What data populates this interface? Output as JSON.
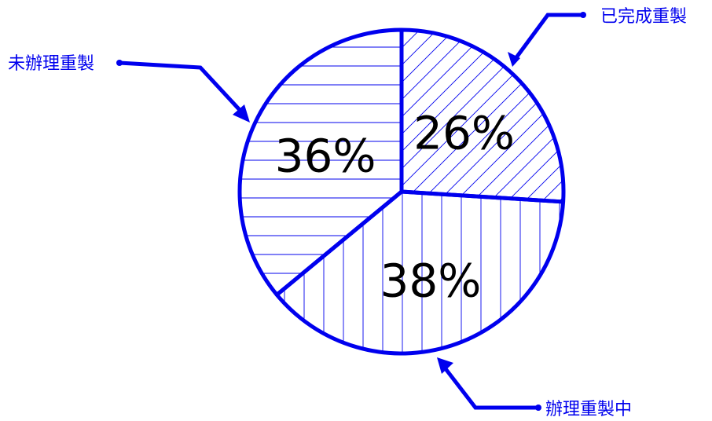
{
  "chart_data": {
    "type": "pie",
    "title": "",
    "slices": [
      {
        "label": "已完成重製",
        "value": 26,
        "display": "26%",
        "pattern": "diagonal"
      },
      {
        "label": "辦理重製中",
        "value": 38,
        "display": "38%",
        "pattern": "vertical"
      },
      {
        "label": "未辦理重製",
        "value": 36,
        "display": "36%",
        "pattern": "horizontal"
      }
    ],
    "start_angle_deg": 0,
    "direction": "clockwise",
    "color": "#0000ee",
    "legend": "callout-labels"
  }
}
